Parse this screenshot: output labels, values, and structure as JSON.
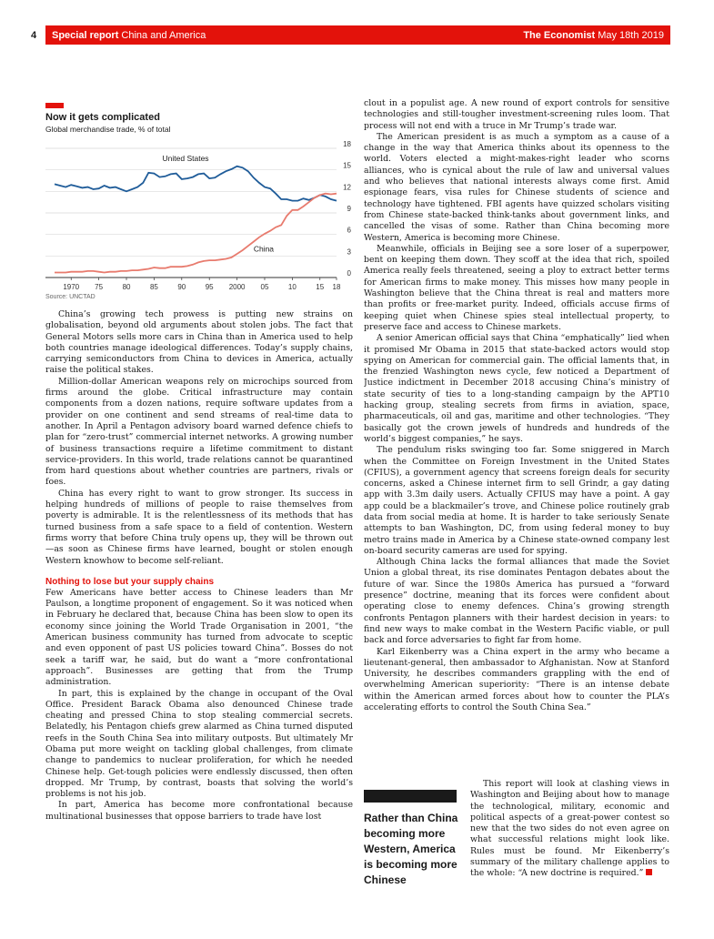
{
  "header": {
    "page_number": "4",
    "section_bold": "Special report",
    "section_title": "China and America",
    "publication": "The Economist",
    "date": "May 18th 2019"
  },
  "chart": {
    "title": "Now it gets complicated",
    "subtitle": "Global merchandise trade, % of total",
    "source": "Source: UNCTAD",
    "label_us": "United States",
    "label_china": "China",
    "accent_color": "#e3120b",
    "us_color": "#1f5c99",
    "china_color": "#e87b6e"
  },
  "chart_data": {
    "type": "line",
    "title": "Now it gets complicated",
    "subtitle": "Global merchandise trade, % of total",
    "x_tick_labels": [
      "1970",
      "75",
      "80",
      "85",
      "90",
      "95",
      "2000",
      "05",
      "10",
      "15",
      "18"
    ],
    "x_ticks": [
      1970,
      1975,
      1980,
      1985,
      1990,
      1995,
      2000,
      2005,
      2010,
      2015,
      2018
    ],
    "y_ticks": [
      0,
      3,
      6,
      9,
      12,
      15,
      18
    ],
    "xlim": [
      1967,
      2018
    ],
    "ylim": [
      0,
      18
    ],
    "grid": true,
    "series": [
      {
        "name": "United States",
        "x": [
          1967,
          1968,
          1969,
          1970,
          1971,
          1972,
          1973,
          1974,
          1975,
          1976,
          1977,
          1978,
          1979,
          1980,
          1981,
          1982,
          1983,
          1984,
          1985,
          1986,
          1987,
          1988,
          1989,
          1990,
          1991,
          1992,
          1993,
          1994,
          1995,
          1996,
          1997,
          1998,
          1999,
          2000,
          2001,
          2002,
          2003,
          2004,
          2005,
          2006,
          2007,
          2008,
          2009,
          2010,
          2011,
          2012,
          2013,
          2014,
          2015,
          2016,
          2017,
          2018
        ],
        "values": [
          13.0,
          12.8,
          12.6,
          12.9,
          12.7,
          12.5,
          12.6,
          12.3,
          12.4,
          12.8,
          12.5,
          12.6,
          12.3,
          12.0,
          12.3,
          12.6,
          13.2,
          14.6,
          14.5,
          14.0,
          14.1,
          14.4,
          14.5,
          13.7,
          13.8,
          14.0,
          14.4,
          14.5,
          13.8,
          13.9,
          14.4,
          14.8,
          15.1,
          15.5,
          15.3,
          14.8,
          13.9,
          13.2,
          12.6,
          12.4,
          11.7,
          10.9,
          10.9,
          10.7,
          10.7,
          11.0,
          10.8,
          11.1,
          11.5,
          11.3,
          10.9,
          10.7
        ]
      },
      {
        "name": "China",
        "x": [
          1967,
          1968,
          1969,
          1970,
          1971,
          1972,
          1973,
          1974,
          1975,
          1976,
          1977,
          1978,
          1979,
          1980,
          1981,
          1982,
          1983,
          1984,
          1985,
          1986,
          1987,
          1988,
          1989,
          1990,
          1991,
          1992,
          1993,
          1994,
          1995,
          1996,
          1997,
          1998,
          1999,
          2000,
          2001,
          2002,
          2003,
          2004,
          2005,
          2006,
          2007,
          2008,
          2009,
          2010,
          2011,
          2012,
          2013,
          2014,
          2015,
          2016,
          2017,
          2018
        ],
        "values": [
          0.7,
          0.7,
          0.7,
          0.8,
          0.8,
          0.8,
          0.9,
          0.9,
          0.8,
          0.7,
          0.8,
          0.8,
          0.9,
          0.9,
          1.0,
          1.0,
          1.1,
          1.2,
          1.4,
          1.3,
          1.3,
          1.5,
          1.5,
          1.5,
          1.6,
          1.8,
          2.1,
          2.3,
          2.4,
          2.4,
          2.5,
          2.6,
          2.8,
          3.3,
          3.8,
          4.4,
          5.0,
          5.6,
          6.1,
          6.5,
          7.0,
          7.3,
          8.6,
          9.4,
          9.4,
          9.9,
          10.5,
          11.1,
          11.5,
          11.7,
          11.6,
          11.7
        ]
      }
    ]
  },
  "article": {
    "left_paragraphs": [
      "China’s growing tech prowess is putting new strains on globalisation, beyond old arguments about stolen jobs. The fact that General Motors sells more cars in China than in America used to help both countries manage ideological differences. Today’s supply chains, carrying semiconductors from China to devices in America, actually raise the political stakes.",
      "Million-dollar American weapons rely on microchips sourced from firms around the globe. Critical infrastructure may contain components from a dozen nations, require software updates from a provider on one continent and send streams of real-time data to another. In April a Pentagon advisory board warned defence chiefs to plan for “zero-trust” commercial internet networks. A growing number of business transactions require a lifetime commitment to distant service-providers. In this world, trade relations cannot be quarantined from hard questions about whether countries are partners, rivals or foes.",
      "China has every right to want to grow stronger. Its success in helping hundreds of millions of people to raise themselves from poverty is admirable. It is the relentlessness of its methods that has turned business from a safe space to a field of contention. Western firms worry that before China truly opens up, they will be thrown out—as soon as Chinese firms have learned, bought or stolen enough Western knowhow to become self-reliant."
    ],
    "subhead": "Nothing to lose but your supply chains",
    "left_paragraphs_2": [
      "Few Americans have better access to Chinese leaders than Mr Paulson, a longtime proponent of engagement. So it was noticed when in February he declared that, because China has been slow to open its economy since joining the World Trade Organisation in 2001, “the American business community has turned from advocate to sceptic and even opponent of past US policies toward China”. Bosses do not seek a tariff war, he said, but do want a “more confrontational approach”. Businesses are getting that from the Trump administration.",
      "In part, this is explained by the change in occupant of the Oval Office. President Barack Obama also denounced Chinese trade cheating and pressed China to stop stealing commercial secrets. Belatedly, his Pentagon chiefs grew alarmed as China turned disputed reefs in the South China Sea into military outposts. But ultimately Mr Obama put more weight on tackling global challenges, from climate change to pandemics to nuclear proliferation, for which he needed Chinese help. Get-tough policies were endlessly discussed, then often dropped. Mr Trump, by contrast, boasts that solving the world’s problems is not his job.",
      "In part, America has become more confrontational because multinational businesses that oppose barriers to trade have lost"
    ],
    "right_paragraphs": [
      "clout in a populist age. A new round of export controls for sensitive technologies and still-tougher investment-screening rules loom. That process will not end with a truce in Mr Trump’s trade war.",
      "The American president is as much a symptom as a cause of a change in the way that America thinks about its openness to the world. Voters elected a might-makes-right leader who scorns alliances, who is cynical about the rule of law and universal values and who believes that national interests always come first. Amid espionage fears, visa rules for Chinese students of science and technology have tightened. FBI agents have quizzed scholars visiting from Chinese state-backed think-tanks about government links, and cancelled the visas of some. Rather than China becoming more Western, America is becoming more Chinese.",
      "Meanwhile, officials in Beijing see a sore loser of a superpower, bent on keeping them down. They scoff at the idea that rich, spoiled America really feels threatened, seeing a ploy to extract better terms for American firms to make money. This misses how many people in Washington believe that the China threat is real and matters more than profits or free-market purity. Indeed, officials accuse firms of keeping quiet when Chinese spies steal intellectual property, to preserve face and access to Chinese markets.",
      "A senior American official says that China “emphatically” lied when it promised Mr Obama in 2015 that state-backed actors would stop spying on American for commercial gain. The official laments that, in the frenzied Washington news cycle, few noticed a Department of Justice indictment in December 2018 accusing China’s ministry of state security of ties to a long-standing campaign by the APT10 hacking group, stealing secrets from firms in aviation, space, pharmaceuticals, oil and gas, maritime and other technologies. “They basically got the crown jewels of hundreds and hundreds of the world’s biggest companies,” he says.",
      "The pendulum risks swinging too far. Some sniggered in March when the Committee on Foreign Investment in the United States (CFIUS), a government agency that screens foreign deals for security concerns, asked a Chinese internet firm to sell Grindr, a gay dating app with 3.3m daily users. Actually CFIUS may have a point. A gay app could be a blackmailer’s trove, and Chinese police routinely grab data from social media at home. It is harder to take seriously Senate attempts to ban Washington, DC, from using federal money to buy metro trains made in America by a Chinese state-owned company lest on-board security cameras are used for spying.",
      "Although China lacks the formal alliances that made the Soviet Union a global threat, its rise dominates Pentagon debates about the future of war. Since the 1980s America has pursued a “forward presence” doctrine, meaning that its forces were confident about operating close to enemy defences. China’s growing strength confronts Pentagon planners with their hardest decision in years: to find new ways to make combat in the Western Pacific viable, or pull back and force adversaries to fight far from home.",
      "Karl Eikenberry was a China expert in the army who became a lieutenant-general, then ambassador to Afghanistan. Now at Stanford University, he describes commanders grappling with the end of overwhelming American superiority: “There is an intense debate within the American armed forces about how to counter the PLA’s accelerating efforts to control the South China Sea.”"
    ],
    "right_paragraph_final": "This report will look at clashing views in Washington and Beijing about how to manage the technological, military, economic and political aspects of a great-power contest so new that the two sides do not even agree on what successful relations might look like. Rules must be found. Mr Eikenberry’s summary of the military challenge applies to the whole: “A new doctrine is required.”",
    "pull_quote": "Rather than China becoming more Western, America is becoming more Chinese"
  }
}
